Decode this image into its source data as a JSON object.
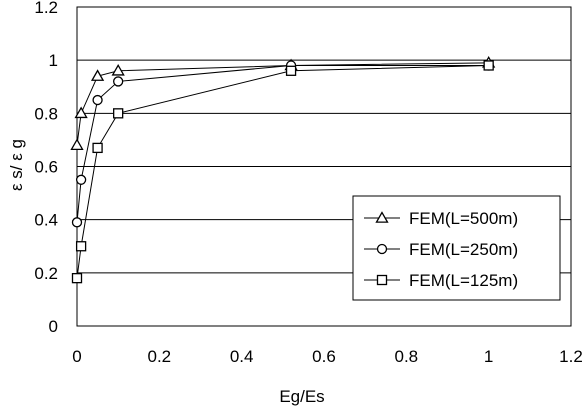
{
  "chart_data": {
    "type": "line",
    "xlabel": "Eg/Es",
    "ylabel": "ε s/ ε g",
    "xlim": [
      0,
      1.2
    ],
    "ylim": [
      0,
      1.2
    ],
    "x_ticks": [
      "0",
      "0.2",
      "0.4",
      "0.6",
      "0.8",
      "1",
      "1.2"
    ],
    "y_ticks": [
      "0",
      "0.2",
      "0.4",
      "0.6",
      "0.8",
      "1",
      "1.2"
    ],
    "grid": "horizontal",
    "legend_position": "bottom-right",
    "series": [
      {
        "name": "FEM(L=500m)",
        "marker": "triangle",
        "x": [
          0,
          0.01,
          0.05,
          0.1,
          0.52,
          1.0
        ],
        "y": [
          0.68,
          0.8,
          0.94,
          0.96,
          0.98,
          0.99
        ]
      },
      {
        "name": "FEM(L=250m)",
        "marker": "circle",
        "x": [
          0,
          0.01,
          0.05,
          0.1,
          0.52,
          1.0
        ],
        "y": [
          0.39,
          0.55,
          0.85,
          0.92,
          0.98,
          0.98
        ]
      },
      {
        "name": "FEM(L=125m)",
        "marker": "square",
        "x": [
          0,
          0.01,
          0.05,
          0.1,
          0.52,
          1.0
        ],
        "y": [
          0.18,
          0.3,
          0.67,
          0.8,
          0.96,
          0.98
        ]
      }
    ]
  }
}
